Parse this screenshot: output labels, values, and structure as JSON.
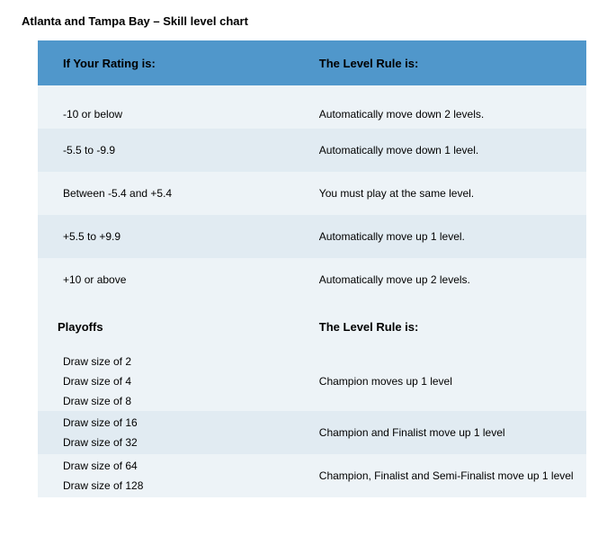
{
  "title": "Atlanta and Tampa Bay – Skill level chart",
  "header": {
    "col1": "If Your Rating is:",
    "col2": "The Level Rule is:"
  },
  "ratings": [
    {
      "range": "-10 or below",
      "rule": "Automatically move down 2 levels."
    },
    {
      "range": "-5.5 to -9.9",
      "rule": "Automatically move down 1 level."
    },
    {
      "range": "Between -5.4 and +5.4",
      "rule": "You must play at the same level."
    },
    {
      "range": "+5.5 to +9.9",
      "rule": "Automatically move up 1 level."
    },
    {
      "range": "+10 or above",
      "rule": "Automatically move up 2 levels."
    }
  ],
  "playoffs_header": {
    "col1": "Playoffs",
    "col2": "The Level Rule is:"
  },
  "playoffs": [
    {
      "sizes": [
        "Draw size of 2",
        "Draw size of 4",
        "Draw size of 8"
      ],
      "rule": "Champion moves up 1 level"
    },
    {
      "sizes": [
        "Draw size of 16",
        "Draw size of 32"
      ],
      "rule": "Champion and Finalist move up 1 level"
    },
    {
      "sizes": [
        "Draw size of 64",
        "Draw size of 128"
      ],
      "rule": "Champion, Finalist and Semi-Finalist move up 1 level"
    }
  ],
  "colors": {
    "header_bg": "#5097cb",
    "row_a": "#edf3f7",
    "row_b": "#e1ebf2",
    "text": "#000000"
  }
}
